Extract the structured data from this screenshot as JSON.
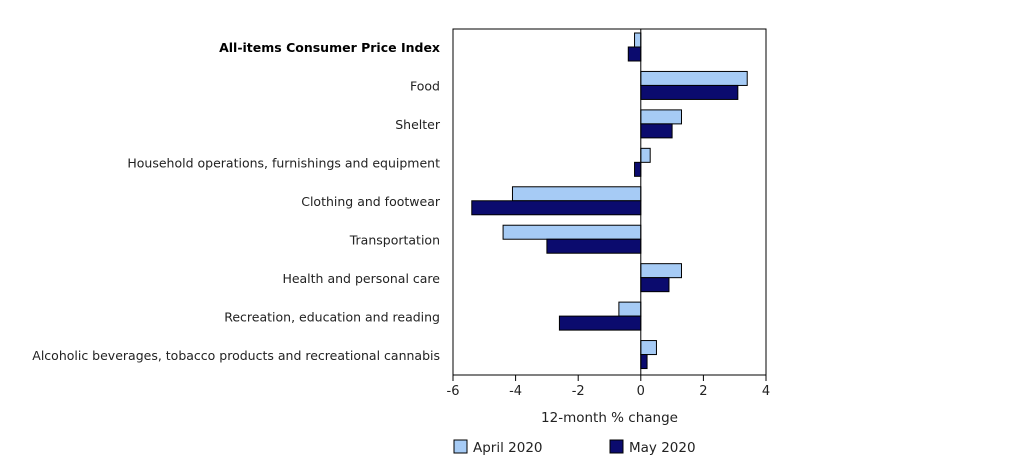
{
  "chart_data": {
    "type": "bar",
    "orientation": "horizontal",
    "categories": [
      "All-items Consumer Price Index",
      "Food",
      "Shelter",
      "Household operations, furnishings and equipment",
      "Clothing and footwear",
      "Transportation",
      "Health and personal care",
      "Recreation, education and reading",
      "Alcoholic beverages, tobacco products and recreational cannabis"
    ],
    "bold_categories": [
      "All-items Consumer Price Index"
    ],
    "series": [
      {
        "name": "April 2020",
        "color": "#a6cbf5",
        "values": [
          -0.2,
          3.4,
          1.3,
          0.3,
          -4.1,
          -4.4,
          1.3,
          -0.7,
          0.5
        ]
      },
      {
        "name": "May 2020",
        "color": "#0b0b6e",
        "values": [
          -0.4,
          3.1,
          1.0,
          -0.2,
          -5.4,
          -3.0,
          0.9,
          -2.6,
          0.2
        ]
      }
    ],
    "xlabel": "12-month % change",
    "xlim": [
      -6,
      4
    ],
    "xticks": [
      -6,
      -4,
      -2,
      0,
      2,
      4
    ],
    "grid": false,
    "legend_position": "bottom"
  }
}
